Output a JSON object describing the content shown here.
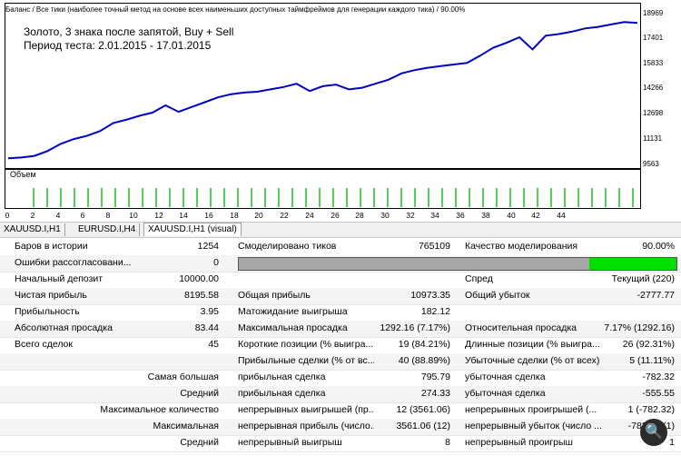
{
  "chart": {
    "header": "Баланс / Все тики (наиболее точный метод на основе всех наименьших доступных таймфреймов для генерации каждого тика) / 90.00%",
    "title_line1": "Золото, 3 знака после запятой, Buy + Sell",
    "title_line2": "Период теста: 2.01.2015 - 17.01.2015",
    "line_color": "#0000c0",
    "volume_color": "#00b000",
    "volume_label": "Объем",
    "y_ticks": [
      "18969",
      "17401",
      "15833",
      "14266",
      "12698",
      "11131",
      "9563"
    ],
    "x_ticks": [
      "0",
      "2",
      "4",
      "6",
      "8",
      "10",
      "12",
      "14",
      "16",
      "18",
      "20",
      "22",
      "24",
      "26",
      "28",
      "30",
      "32",
      "34",
      "36",
      "38",
      "40",
      "42",
      "44"
    ]
  },
  "chart_data": {
    "type": "line",
    "title": "Золото, 3 знака после запятой, Buy + Sell",
    "xlabel": "",
    "ylabel": "",
    "ylim": [
      9563,
      18969
    ],
    "series": [
      {
        "values": [
          10000,
          10050,
          10150,
          10450,
          10900,
          11200,
          11400,
          11700,
          12200,
          12400,
          12650,
          12850,
          13300,
          12900,
          13200,
          13500,
          13800,
          14000,
          14100,
          14150,
          14300,
          14450,
          14650,
          14200,
          14500,
          14600,
          14300,
          14400,
          14650,
          14900,
          15300,
          15500,
          15650,
          15750,
          15850,
          15950,
          16400,
          16900,
          17200,
          17550,
          16800,
          17650,
          17750,
          17900,
          18100,
          18200,
          18350,
          18500,
          18450
        ]
      }
    ],
    "volume_count": 45
  },
  "tabs": [
    {
      "label": "XAUUSD.I,H1"
    },
    {
      "label": "EURUSD.I,H4"
    },
    {
      "label": "XAUUSD.I,H1 (visual)"
    }
  ],
  "stats": {
    "bars_label": "Баров в истории",
    "bars_value": "1254",
    "ticks_label": "Смоделировано тиков",
    "ticks_value": "765109",
    "quality_label": "Качество моделирования",
    "quality_value": "90.00%",
    "mismatch_label": "Ошибки рассогласовани...",
    "mismatch_value": "0",
    "quality_fraction": 0.9,
    "deposit_label": "Начальный депозит",
    "deposit_value": "10000.00",
    "spread_label": "Спред",
    "spread_value": "Текущий (220)",
    "net_label": "Чистая прибыль",
    "net_value": "8195.58",
    "gross_profit_label": "Общая прибыль",
    "gross_profit_value": "10973.35",
    "gross_loss_label": "Общий убыток",
    "gross_loss_value": "-2777.77",
    "pf_label": "Прибыльность",
    "pf_value": "3.95",
    "exp_label": "Матожидание выигрыша",
    "exp_value": "182.12",
    "abs_dd_label": "Абсолютная просадка",
    "abs_dd_value": "83.44",
    "max_dd_label": "Максимальная просадка",
    "max_dd_value": "1292.16 (7.17%)",
    "rel_dd_label": "Относительная просадка",
    "rel_dd_value": "7.17% (1292.16)",
    "total_label": "Всего сделок",
    "total_value": "45",
    "short_label": "Короткие позиции (% выигра...",
    "short_value": "19 (84.21%)",
    "long_label": "Длинные позиции (% выигра...",
    "long_value": "26 (92.31%)",
    "profit_trades_label": "Прибыльные сделки (% от вс...",
    "profit_trades_value": "40 (88.89%)",
    "loss_trades_label": "Убыточные сделки (% от всех)",
    "loss_trades_value": "5 (11.11%)",
    "largest_label": "Самая большая",
    "largest_p_label": "прибыльная сделка",
    "largest_p_value": "795.79",
    "largest_l_label": "убыточная сделка",
    "largest_l_value": "-782.32",
    "average_label": "Средний",
    "average_p_label": "прибыльная сделка",
    "average_p_value": "274.33",
    "average_l_label": "убыточная сделка",
    "average_l_value": "-555.55",
    "maxcount_label": "Максимальное количество",
    "maxcount_p_label": "непрерывных выигрышей (пр...",
    "maxcount_p_value": "12 (3561.06)",
    "maxcount_l_label": "непрерывных проигрышей (...",
    "maxcount_l_value": "1 (-782.32)",
    "maximal_label": "Максимальная",
    "maximal_p_label": "непрерывная прибыль (число...",
    "maximal_p_value": "3561.06 (12)",
    "maximal_l_label": "непрерывный убыток (число ...",
    "maximal_l_value": "-782.32 (1)",
    "avgcons_label": "Средний",
    "avgcons_p_label": "непрерывный выигрыш",
    "avgcons_p_value": "8",
    "avgcons_l_label": "непрерывный проигрыш",
    "avgcons_l_value": "1"
  },
  "zoom_icon": "magnifier-icon"
}
